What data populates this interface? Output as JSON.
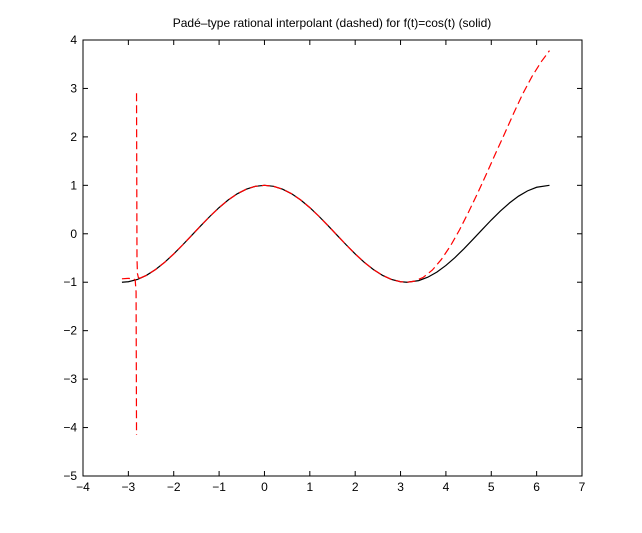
{
  "chart_data": {
    "type": "line",
    "title": "Padé–type rational interpolant (dashed) for f(t)=cos(t) (solid)",
    "xlabel": "",
    "ylabel": "",
    "xlim": [
      -4,
      7
    ],
    "ylim": [
      -5,
      4
    ],
    "xticks": [
      -4,
      -3,
      -2,
      -1,
      0,
      1,
      2,
      3,
      4,
      5,
      6,
      7
    ],
    "yticks": [
      4,
      3,
      2,
      1,
      0,
      -1,
      -2,
      -3,
      -4,
      -5
    ],
    "xtick_labels": [
      "−4",
      "−3",
      "−2",
      "−1",
      "0",
      "1",
      "2",
      "3",
      "4",
      "5",
      "6",
      "7"
    ],
    "ytick_labels": [
      "4",
      "3",
      "2",
      "1",
      "0",
      "−1",
      "−2",
      "−3",
      "−4",
      "−5"
    ],
    "grid": false,
    "series": [
      {
        "style": "solid",
        "color": "#000000",
        "x": [
          -3.1416,
          -3.0,
          -2.8,
          -2.6,
          -2.4,
          -2.2,
          -2.0,
          -1.8,
          -1.6,
          -1.4,
          -1.2,
          -1.0,
          -0.8,
          -0.6,
          -0.4,
          -0.2,
          0.0,
          0.2,
          0.4,
          0.6,
          0.8,
          1.0,
          1.2,
          1.4,
          1.6,
          1.8,
          2.0,
          2.2,
          2.4,
          2.6,
          2.8,
          3.0,
          3.1416,
          3.4,
          3.6,
          3.8,
          4.0,
          4.2,
          4.4,
          4.6,
          4.8,
          5.0,
          5.2,
          5.4,
          5.6,
          5.8,
          6.0,
          6.2832
        ],
        "y": [
          -1.0,
          -0.99,
          -0.942,
          -0.857,
          -0.737,
          -0.589,
          -0.416,
          -0.227,
          -0.029,
          0.17,
          0.362,
          0.54,
          0.697,
          0.825,
          0.921,
          0.98,
          1.0,
          0.98,
          0.921,
          0.825,
          0.697,
          0.54,
          0.362,
          0.17,
          -0.029,
          -0.227,
          -0.416,
          -0.589,
          -0.737,
          -0.857,
          -0.942,
          -0.99,
          -1.0,
          -0.967,
          -0.897,
          -0.791,
          -0.654,
          -0.49,
          -0.307,
          -0.112,
          0.087,
          0.284,
          0.469,
          0.635,
          0.776,
          0.886,
          0.96,
          1.0
        ]
      },
      {
        "style": "dashed",
        "color": "#ff0000",
        "segments": [
          {
            "x": [
              -3.1416,
              -3.0,
              -2.9,
              -2.85,
              -2.83,
              -2.82
            ],
            "y": [
              -0.93,
              -0.92,
              -0.93,
              -0.95,
              -1.2,
              -4.15
            ]
          },
          {
            "x": [
              -2.82,
              -2.81,
              -2.8,
              -2.78,
              -2.75
            ],
            "y": [
              2.9,
              -0.5,
              -0.82,
              -0.9,
              -0.92
            ]
          },
          {
            "x": [
              -2.75,
              -2.6,
              -2.4,
              -2.2,
              -2.0,
              -1.8,
              -1.6,
              -1.4,
              -1.2,
              -1.0,
              -0.8,
              -0.6,
              -0.4,
              -0.2,
              0.0,
              0.2,
              0.4,
              0.6,
              0.8,
              1.0,
              1.2,
              1.4,
              1.6,
              1.8,
              2.0,
              2.2,
              2.4,
              2.6,
              2.8,
              3.0,
              3.1416,
              3.3,
              3.5,
              3.7,
              3.9,
              4.1,
              4.3,
              4.5,
              4.7,
              4.9,
              5.1,
              5.3,
              5.5,
              5.7,
              5.9,
              6.1,
              6.2832
            ],
            "y": [
              -0.92,
              -0.857,
              -0.737,
              -0.589,
              -0.416,
              -0.227,
              -0.029,
              0.17,
              0.362,
              0.54,
              0.697,
              0.825,
              0.921,
              0.98,
              1.0,
              0.98,
              0.921,
              0.825,
              0.697,
              0.54,
              0.362,
              0.17,
              -0.029,
              -0.227,
              -0.416,
              -0.589,
              -0.737,
              -0.857,
              -0.942,
              -0.99,
              -1.0,
              -0.98,
              -0.9,
              -0.75,
              -0.53,
              -0.25,
              0.08,
              0.45,
              0.84,
              1.25,
              1.67,
              2.08,
              2.5,
              2.9,
              3.25,
              3.55,
              3.78
            ]
          }
        ]
      }
    ]
  }
}
